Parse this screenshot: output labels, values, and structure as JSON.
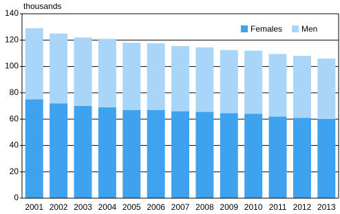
{
  "chart_data": {
    "type": "stacked_bar",
    "y_label": "thousands",
    "categories": [
      "2001",
      "2002",
      "2003",
      "2004",
      "2005",
      "2006",
      "2007",
      "2008",
      "2009",
      "2010",
      "2011",
      "2012",
      "2013"
    ],
    "series": [
      {
        "name": "Females",
        "color": "#3fa2ef",
        "values": [
          75,
          72,
          70,
          69,
          67,
          67,
          66,
          65.5,
          64.5,
          64,
          62,
          61,
          60
        ]
      },
      {
        "name": "Men",
        "color": "#a9d5f8",
        "values": [
          54,
          53,
          52,
          52,
          51,
          50.5,
          49.5,
          49,
          48,
          48,
          47.5,
          47,
          46
        ]
      }
    ],
    "ylim": [
      0,
      140
    ],
    "yticks": [
      0,
      20,
      40,
      60,
      80,
      100,
      120,
      140
    ],
    "grid": true,
    "legend": "top-right"
  }
}
